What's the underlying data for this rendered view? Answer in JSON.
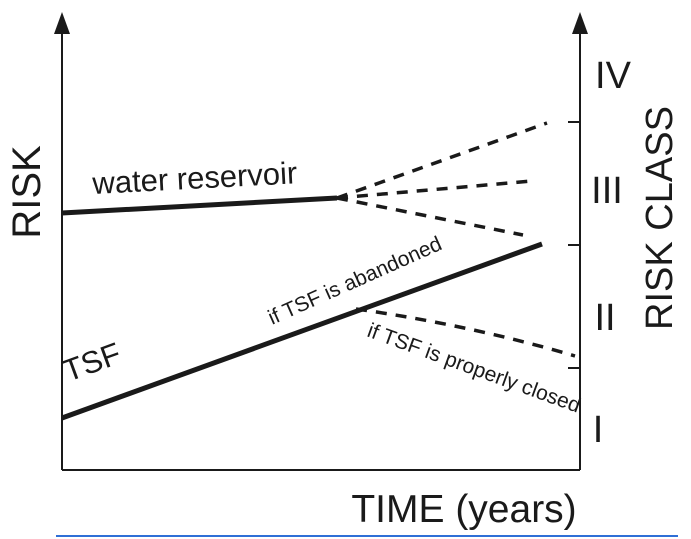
{
  "axes": {
    "y_left_title": "RISK",
    "y_right_title": "RISK CLASS",
    "x_title": "TIME (years)"
  },
  "risk_classes": [
    "I",
    "II",
    "III",
    "IV"
  ],
  "lines": {
    "water_reservoir": "water reservoir",
    "tsf": "TSF",
    "tsf_abandoned": "if TSF is abandoned",
    "tsf_closed": "if TSF is properly closed"
  },
  "colors": {
    "left_axis_title": "#d42a2a",
    "right_axis": "#1fa04a",
    "x_axis_title": "#2e3d91",
    "lines": "#1a1a1a",
    "bottom_rule": "#2f6fd6"
  }
}
